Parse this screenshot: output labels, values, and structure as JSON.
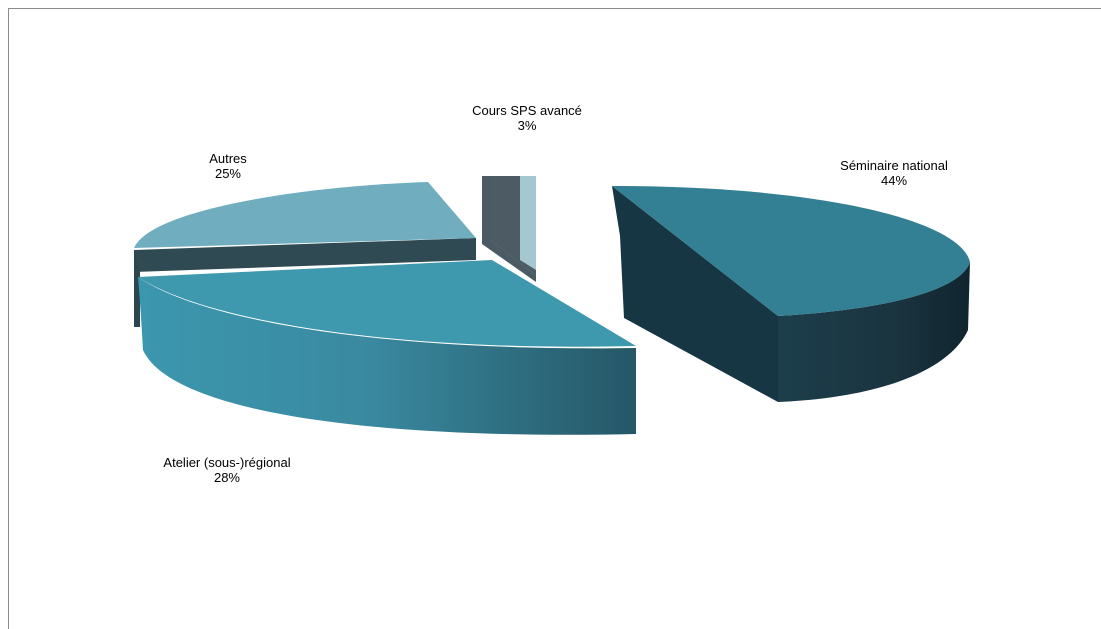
{
  "chart_data": {
    "type": "pie",
    "style": "3d-exploded",
    "title": "",
    "slices": [
      {
        "label": "Séminaire national",
        "percent_label": "44%",
        "value": 44,
        "color": "#337f94"
      },
      {
        "label": "Atelier (sous-)régional",
        "percent_label": "28%",
        "value": 28,
        "color": "#3e98ae"
      },
      {
        "label": "Autres",
        "percent_label": "25%",
        "value": 25,
        "color": "#70adbf"
      },
      {
        "label": "Cours SPS avancé",
        "percent_label": "3%",
        "value": 3,
        "color": "#a6c6d0"
      }
    ],
    "legend": "none",
    "data_labels": "category-and-percent"
  }
}
